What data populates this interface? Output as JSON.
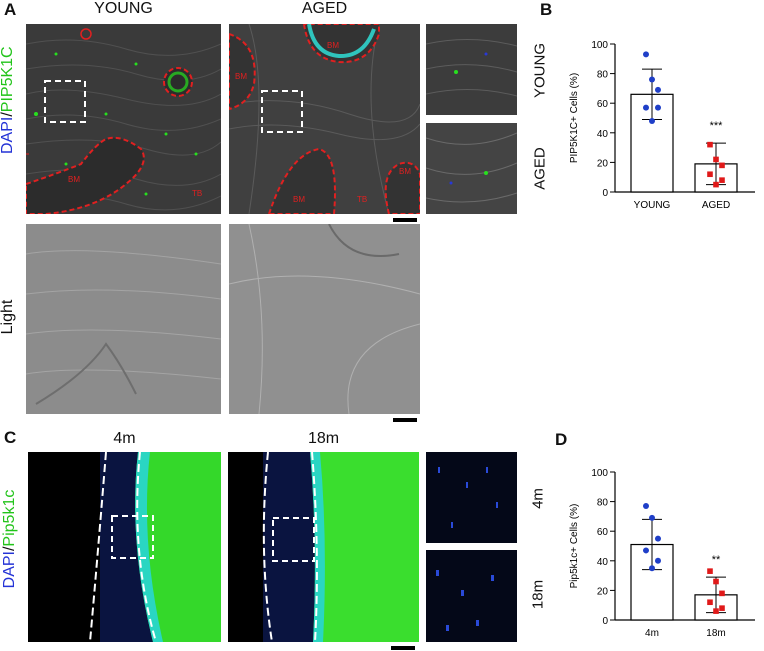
{
  "panel_labels": {
    "a": "A",
    "b": "B",
    "c": "C",
    "d": "D"
  },
  "panel_a": {
    "col_young": "YOUNG",
    "col_aged": "AGED",
    "row_stain": {
      "dapi": "DAPI",
      "sep": "/",
      "marker": "PIP5K1C"
    },
    "row_light": "Light",
    "side_young": "YOUNG",
    "side_aged": "AGED",
    "region_bm": "BM",
    "region_tb": "TB"
  },
  "panel_c": {
    "col_4m": "4m",
    "col_18m": "18m",
    "row_stain": {
      "dapi": "DAPI",
      "sep": "/",
      "marker": "Pip5k1c"
    },
    "side_4m": "4m",
    "side_18m": "18m"
  },
  "colors": {
    "young_points": "#1f3fc8",
    "aged_points": "#e01919",
    "gfp": "#27e01e",
    "dapi": "#2838d8",
    "outline": "#e02020"
  },
  "chart_data": [
    {
      "type": "bar",
      "panel": "B",
      "categories": [
        "YOUNG",
        "AGED"
      ],
      "values": [
        66,
        19
      ],
      "errors": [
        17,
        14
      ],
      "points": [
        [
          93,
          76,
          69,
          57,
          57,
          48
        ],
        [
          32,
          22,
          18,
          12,
          8,
          5
        ]
      ],
      "point_colors": [
        "#1f3fc8",
        "#e01919"
      ],
      "significance": "***",
      "ylabel": "PIP5K1C+ Cells (%)",
      "ylim": [
        0,
        100
      ],
      "yticks": [
        0,
        20,
        40,
        60,
        80,
        100
      ]
    },
    {
      "type": "bar",
      "panel": "D",
      "categories": [
        "4m",
        "18m"
      ],
      "values": [
        51,
        17
      ],
      "errors": [
        17,
        12
      ],
      "points": [
        [
          77,
          69,
          55,
          47,
          40,
          35
        ],
        [
          33,
          26,
          18,
          12,
          8,
          6
        ]
      ],
      "point_colors": [
        "#1f3fc8",
        "#e01919"
      ],
      "significance": "**",
      "ylabel": "Pip5k1c+ Cells (%)",
      "ylim": [
        0,
        100
      ],
      "yticks": [
        0,
        20,
        40,
        60,
        80,
        100
      ]
    }
  ]
}
